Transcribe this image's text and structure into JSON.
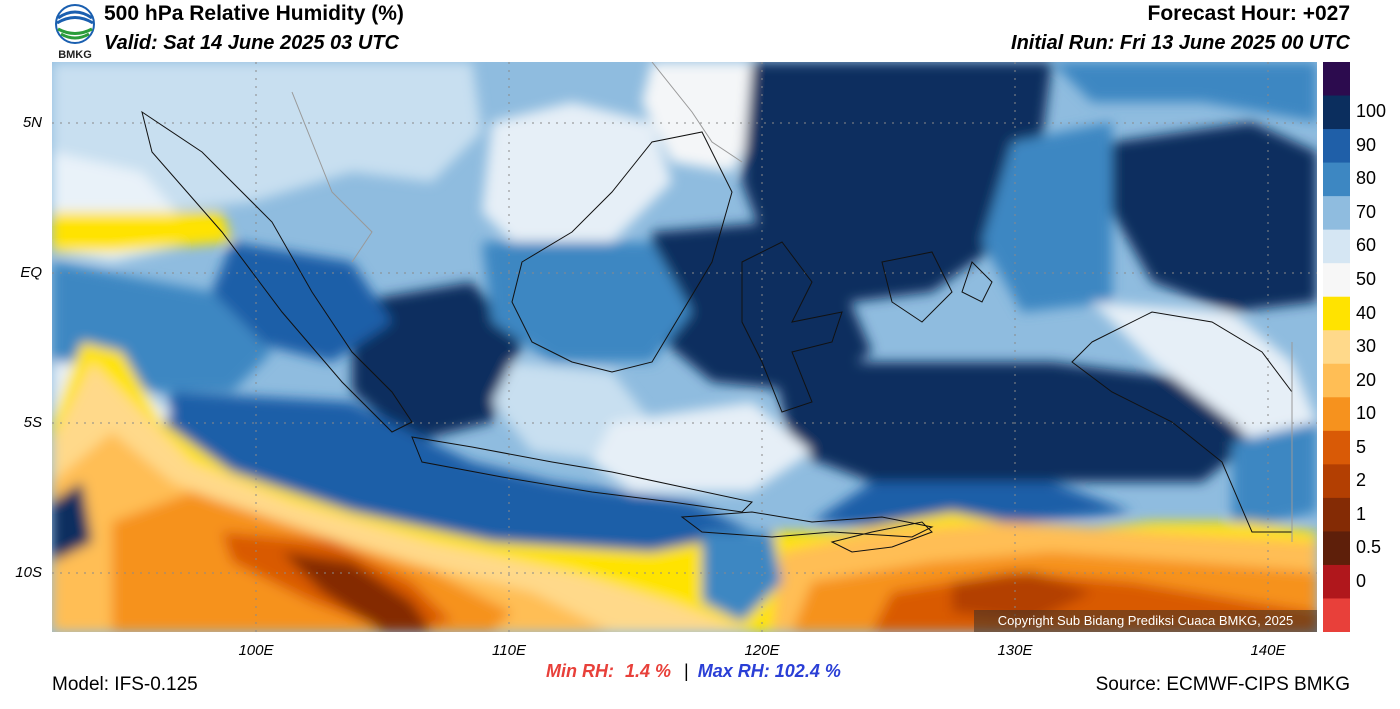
{
  "header": {
    "title": "500 hPa Relative Humidity (%)",
    "valid": "Valid: Sat 14 June 2025 03 UTC",
    "forecast_hour": "Forecast Hour: +027",
    "initial_run": "Initial Run: Fri 13 June 2025 00 UTC",
    "logo_text": "BMKG"
  },
  "axes": {
    "lat_labels": [
      "5N",
      "EQ",
      "5S",
      "10S"
    ],
    "lon_labels": [
      "100E",
      "110E",
      "120E",
      "130E",
      "140E"
    ]
  },
  "colorbar": {
    "labels": [
      "100",
      "90",
      "80",
      "70",
      "60",
      "50",
      "40",
      "30",
      "20",
      "10",
      "5",
      "2",
      "1",
      "0.5",
      "0"
    ],
    "colors": [
      "#2c0b4e",
      "#0b2e5e",
      "#1f5fa8",
      "#3d87c2",
      "#8fbcdf",
      "#d5e6f3",
      "#f7f7f7",
      "#ffe300",
      "#ffd98a",
      "#ffbe55",
      "#f6921e",
      "#d95a06",
      "#b33f02",
      "#842b05",
      "#5e1f0a",
      "#b0171c",
      "#e8403a"
    ]
  },
  "stats": {
    "min_label": "Min RH:",
    "min_value": "1.4 %",
    "separator": "|",
    "max_label": "Max RH:",
    "max_value": "102.4 %",
    "min_color": "#e8403a",
    "max_color": "#2a3fd6"
  },
  "footer": {
    "model": "Model: IFS-0.125",
    "source": "Source: ECMWF-CIPS BMKG",
    "copyright": "Copyright Sub Bidang Prediksi Cuaca BMKG, 2025"
  }
}
